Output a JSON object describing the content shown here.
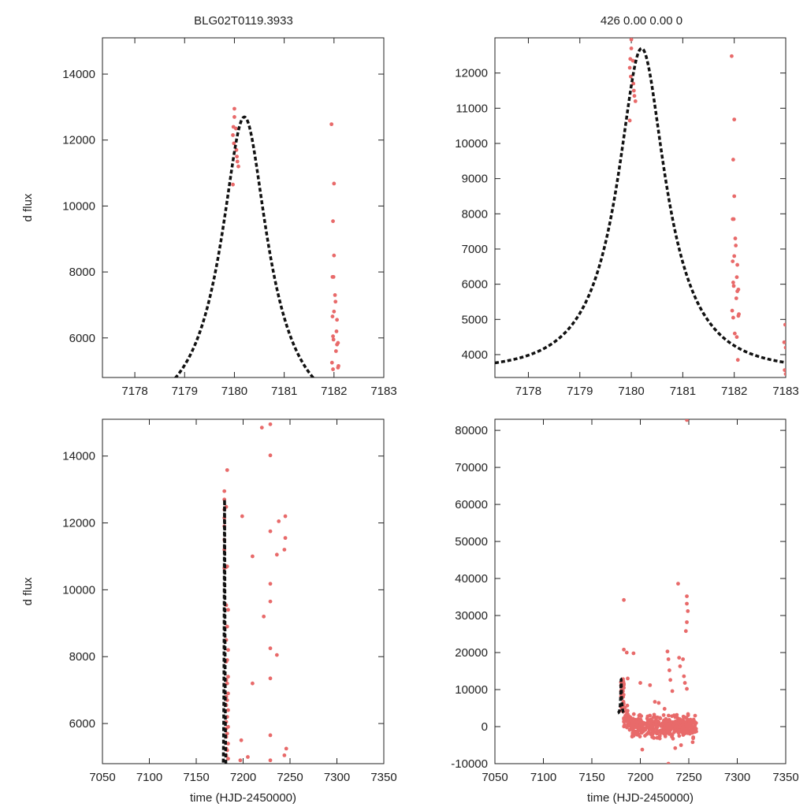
{
  "figure": {
    "title_left": "BLG02T0119.3933",
    "title_right": "426  0.00  0.00  0",
    "ylabel": "d flux",
    "xlabel": "time (HJD-2450000)"
  },
  "colors": {
    "points": "#e86a6a",
    "model": "#111111",
    "frame": "#222222"
  },
  "chart_data": [
    {
      "type": "scatter",
      "panel": "top-left",
      "xlim": [
        7177.35,
        7183.0
      ],
      "ylim": [
        4800,
        15100
      ],
      "xticks": [
        7178,
        7179,
        7180,
        7181,
        7182,
        7183
      ],
      "yticks": [
        6000,
        8000,
        10000,
        12000,
        14000
      ],
      "ylabel": "d flux",
      "xlabel": "",
      "model": {
        "t0": 7180.2,
        "peak": 12700,
        "base": 3560,
        "u0": 0.35,
        "tE": 1.3
      },
      "points": [
        [
          7180.0,
          12950
        ],
        [
          7180.0,
          12700
        ],
        [
          7179.98,
          12400
        ],
        [
          7180.03,
          12350
        ],
        [
          7179.97,
          12150
        ],
        [
          7179.99,
          11900
        ],
        [
          7180.04,
          11700
        ],
        [
          7180.05,
          11500
        ],
        [
          7180.06,
          11350
        ],
        [
          7180.08,
          11200
        ],
        [
          7179.97,
          10650
        ],
        [
          7181.95,
          12480
        ],
        [
          7182.0,
          10680
        ],
        [
          7181.98,
          9540
        ],
        [
          7182.0,
          8500
        ],
        [
          7181.97,
          7850
        ],
        [
          7181.99,
          7850
        ],
        [
          7182.02,
          7300
        ],
        [
          7182.03,
          7100
        ],
        [
          7182.0,
          6800
        ],
        [
          7181.97,
          6650
        ],
        [
          7182.06,
          6550
        ],
        [
          7182.05,
          6200
        ],
        [
          7181.98,
          6050
        ],
        [
          7181.99,
          5950
        ],
        [
          7182.06,
          5800
        ],
        [
          7182.08,
          5850
        ],
        [
          7182.04,
          5600
        ],
        [
          7181.96,
          5250
        ],
        [
          7182.09,
          5150
        ],
        [
          7182.08,
          5100
        ],
        [
          7181.98,
          5050
        ]
      ]
    },
    {
      "type": "scatter",
      "panel": "top-right",
      "xlim": [
        7177.35,
        7183.0
      ],
      "ylim": [
        3350,
        13000
      ],
      "xticks": [
        7178,
        7179,
        7180,
        7181,
        7182,
        7183
      ],
      "yticks": [
        4000,
        5000,
        6000,
        7000,
        8000,
        9000,
        10000,
        11000,
        12000
      ],
      "ylabel": "",
      "xlabel": "",
      "model": {
        "t0": 7180.2,
        "peak": 12700,
        "base": 3560,
        "u0": 0.35,
        "tE": 1.3
      },
      "points": [
        [
          7180.0,
          12950
        ],
        [
          7180.0,
          12700
        ],
        [
          7179.98,
          12400
        ],
        [
          7180.03,
          12350
        ],
        [
          7179.97,
          12150
        ],
        [
          7179.99,
          11900
        ],
        [
          7180.04,
          11700
        ],
        [
          7180.05,
          11500
        ],
        [
          7180.06,
          11350
        ],
        [
          7180.08,
          11200
        ],
        [
          7179.97,
          10650
        ],
        [
          7181.95,
          12480
        ],
        [
          7182.0,
          10680
        ],
        [
          7181.98,
          9540
        ],
        [
          7182.0,
          8500
        ],
        [
          7181.97,
          7850
        ],
        [
          7181.99,
          7850
        ],
        [
          7182.02,
          7300
        ],
        [
          7182.03,
          7100
        ],
        [
          7182.0,
          6800
        ],
        [
          7181.97,
          6650
        ],
        [
          7182.06,
          6550
        ],
        [
          7182.05,
          6200
        ],
        [
          7181.98,
          6050
        ],
        [
          7181.99,
          5950
        ],
        [
          7182.06,
          5800
        ],
        [
          7182.08,
          5850
        ],
        [
          7182.04,
          5600
        ],
        [
          7181.96,
          5250
        ],
        [
          7182.09,
          5150
        ],
        [
          7182.08,
          5100
        ],
        [
          7181.98,
          5050
        ],
        [
          7182.01,
          4600
        ],
        [
          7182.05,
          4500
        ],
        [
          7182.07,
          3850
        ],
        [
          7182.99,
          4850
        ],
        [
          7182.97,
          4350
        ],
        [
          7183.0,
          4200
        ],
        [
          7182.98,
          3560
        ],
        [
          7183.0,
          3450
        ]
      ]
    },
    {
      "type": "scatter",
      "panel": "bottom-left",
      "xlim": [
        7050,
        7350
      ],
      "ylim": [
        4800,
        15100
      ],
      "xticks": [
        7050,
        7100,
        7150,
        7200,
        7250,
        7300,
        7350
      ],
      "yticks": [
        6000,
        8000,
        10000,
        12000,
        14000
      ],
      "ylabel": "d flux",
      "xlabel": "time (HJD-2450000)",
      "model": {
        "t0": 7180.2,
        "peak": 12700,
        "base": 3560,
        "u0": 0.35,
        "tE": 1.3
      },
      "points": [
        [
          7180,
          12950
        ],
        [
          7180,
          12700
        ],
        [
          7180,
          12400
        ],
        [
          7180,
          12150
        ],
        [
          7180,
          11900
        ],
        [
          7180,
          11500
        ],
        [
          7180,
          11200
        ],
        [
          7180,
          10650
        ],
        [
          7182,
          12480
        ],
        [
          7182,
          10680
        ],
        [
          7182,
          9540
        ],
        [
          7182,
          8500
        ],
        [
          7182,
          7850
        ],
        [
          7182,
          7300
        ],
        [
          7182,
          6800
        ],
        [
          7182,
          6550
        ],
        [
          7182,
          6050
        ],
        [
          7182,
          5850
        ],
        [
          7182,
          5600
        ],
        [
          7182,
          5250
        ],
        [
          7182,
          5050
        ],
        [
          7183,
          13580
        ],
        [
          7183,
          10700
        ],
        [
          7184,
          9400
        ],
        [
          7183,
          8900
        ],
        [
          7184,
          8200
        ],
        [
          7183,
          7900
        ],
        [
          7184,
          7400
        ],
        [
          7183,
          7200
        ],
        [
          7184,
          6900
        ],
        [
          7183,
          6700
        ],
        [
          7184,
          6400
        ],
        [
          7183,
          6200
        ],
        [
          7184,
          5900
        ],
        [
          7183,
          5700
        ],
        [
          7184,
          5400
        ],
        [
          7183,
          5200
        ],
        [
          7184,
          4950
        ],
        [
          7199,
          12200
        ],
        [
          7198,
          5500
        ],
        [
          7197,
          4900
        ],
        [
          7205,
          5000
        ],
        [
          7210,
          11000
        ],
        [
          7210,
          7200
        ],
        [
          7220,
          14850
        ],
        [
          7222,
          9200
        ],
        [
          7229,
          14950
        ],
        [
          7229,
          14020
        ],
        [
          7229,
          11750
        ],
        [
          7229,
          10180
        ],
        [
          7229,
          9650
        ],
        [
          7229,
          8250
        ],
        [
          7229,
          7350
        ],
        [
          7229,
          5650
        ],
        [
          7229,
          4900
        ],
        [
          7236,
          11050
        ],
        [
          7238,
          12050
        ],
        [
          7236,
          8050
        ],
        [
          7245,
          12200
        ],
        [
          7245,
          11550
        ],
        [
          7244,
          11200
        ],
        [
          7244,
          5050
        ],
        [
          7246,
          5250
        ]
      ]
    },
    {
      "type": "scatter",
      "panel": "bottom-right",
      "xlim": [
        7050,
        7350
      ],
      "ylim": [
        -10000,
        83000
      ],
      "xticks": [
        7050,
        7100,
        7150,
        7200,
        7250,
        7300,
        7350
      ],
      "yticks": [
        -10000,
        0,
        10000,
        20000,
        30000,
        40000,
        50000,
        60000,
        70000,
        80000
      ],
      "ylabel": "",
      "xlabel": "time (HJD-2450000)",
      "model": {
        "t0": 7180.2,
        "peak": 12700,
        "base": 3560,
        "u0": 0.35,
        "tE": 1.3
      },
      "outliers": [
        [
          7248,
          82800
        ],
        [
          7183,
          34200
        ],
        [
          7239,
          38600
        ],
        [
          7248,
          35200
        ],
        [
          7248,
          33200
        ],
        [
          7249,
          31200
        ],
        [
          7248,
          28200
        ],
        [
          7247,
          25800
        ],
        [
          7183,
          20800
        ],
        [
          7186,
          20000
        ],
        [
          7193,
          19800
        ],
        [
          7187,
          13000
        ],
        [
          7200,
          11800
        ],
        [
          7210,
          11200
        ],
        [
          7228,
          20300
        ],
        [
          7229,
          18200
        ],
        [
          7230,
          15200
        ],
        [
          7231,
          12600
        ],
        [
          7233,
          9600
        ],
        [
          7240,
          18600
        ],
        [
          7244,
          18200
        ],
        [
          7241,
          16300
        ],
        [
          7245,
          13600
        ],
        [
          7246,
          11800
        ],
        [
          7248,
          10200
        ],
        [
          7219,
          6400
        ],
        [
          7215,
          6700
        ],
        [
          7225,
          4800
        ],
        [
          7236,
          -5800
        ],
        [
          7202,
          -6200
        ],
        [
          7229,
          -10000
        ],
        [
          7242,
          -5000
        ],
        [
          7254,
          -4200
        ]
      ]
    }
  ]
}
